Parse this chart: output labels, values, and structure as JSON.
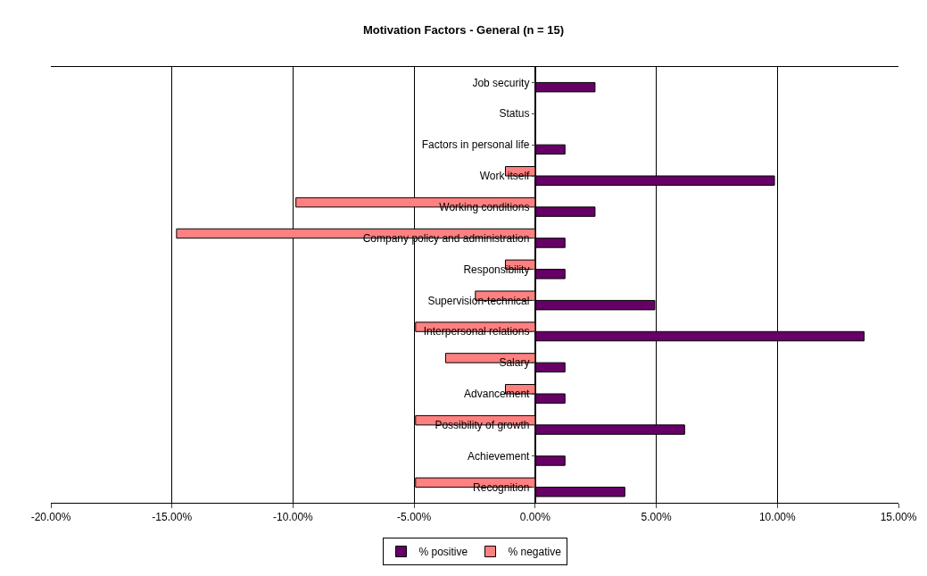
{
  "chart_data": {
    "type": "bar",
    "orientation": "horizontal",
    "title": "Motivation Factors - General (n = 15)",
    "categories": [
      "Job security",
      "Status",
      "Factors in personal life",
      "Work itself",
      "Working conditions",
      "Company policy and administration",
      "Responsibility",
      "Supervision-technical",
      "Interpersonal relations",
      "Salary",
      "Advancement",
      "Possibility of growth",
      "Achievement",
      "Recognition"
    ],
    "series": [
      {
        "name": "% negative",
        "color": "#ff8080",
        "values": [
          null,
          null,
          null,
          -1.23,
          -9.88,
          -14.81,
          -1.23,
          -2.47,
          -4.94,
          -3.7,
          -1.23,
          -4.94,
          null,
          -4.94
        ]
      },
      {
        "name": "% positive",
        "color": "#660066",
        "values": [
          2.47,
          null,
          1.23,
          9.88,
          2.47,
          1.23,
          1.23,
          4.94,
          13.58,
          1.23,
          1.23,
          6.17,
          1.23,
          3.7
        ]
      }
    ],
    "xlim": [
      -20,
      15
    ],
    "xticks": [
      {
        "value": -20,
        "label": "-20.00%"
      },
      {
        "value": -15,
        "label": "-15.00%"
      },
      {
        "value": -10,
        "label": "-10.00%"
      },
      {
        "value": -5,
        "label": "-5.00%"
      },
      {
        "value": 0,
        "label": "0.00%"
      },
      {
        "value": 5,
        "label": "5.00%"
      },
      {
        "value": 10,
        "label": "10.00%"
      },
      {
        "value": 15,
        "label": "15.00%"
      }
    ],
    "grid": "x",
    "legend": "bottom"
  }
}
